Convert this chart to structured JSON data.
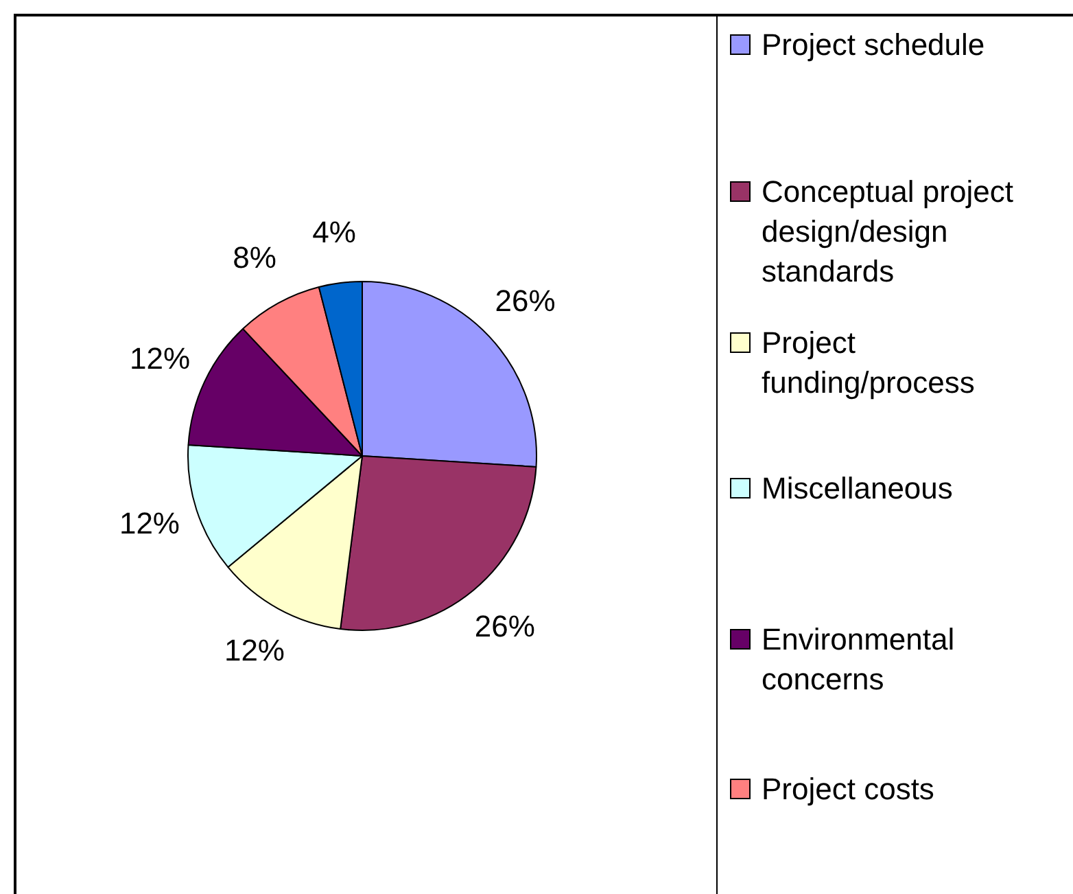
{
  "chart_data": {
    "type": "pie",
    "categories": [
      "Project schedule",
      "Conceptual project design/design standards",
      "Project funding/process",
      "Miscellaneous",
      "Environmental concerns",
      "Project costs",
      null
    ],
    "values": [
      26,
      26,
      12,
      12,
      12,
      8,
      4
    ],
    "colors": [
      "#9999ff",
      "#993366",
      "#ffffcc",
      "#ccffff",
      "#660066",
      "#ff8080",
      "#0066cc"
    ],
    "value_labels": [
      "26%",
      "26%",
      "12%",
      "12%",
      "12%",
      "8%",
      "4%"
    ],
    "legend": "right"
  }
}
